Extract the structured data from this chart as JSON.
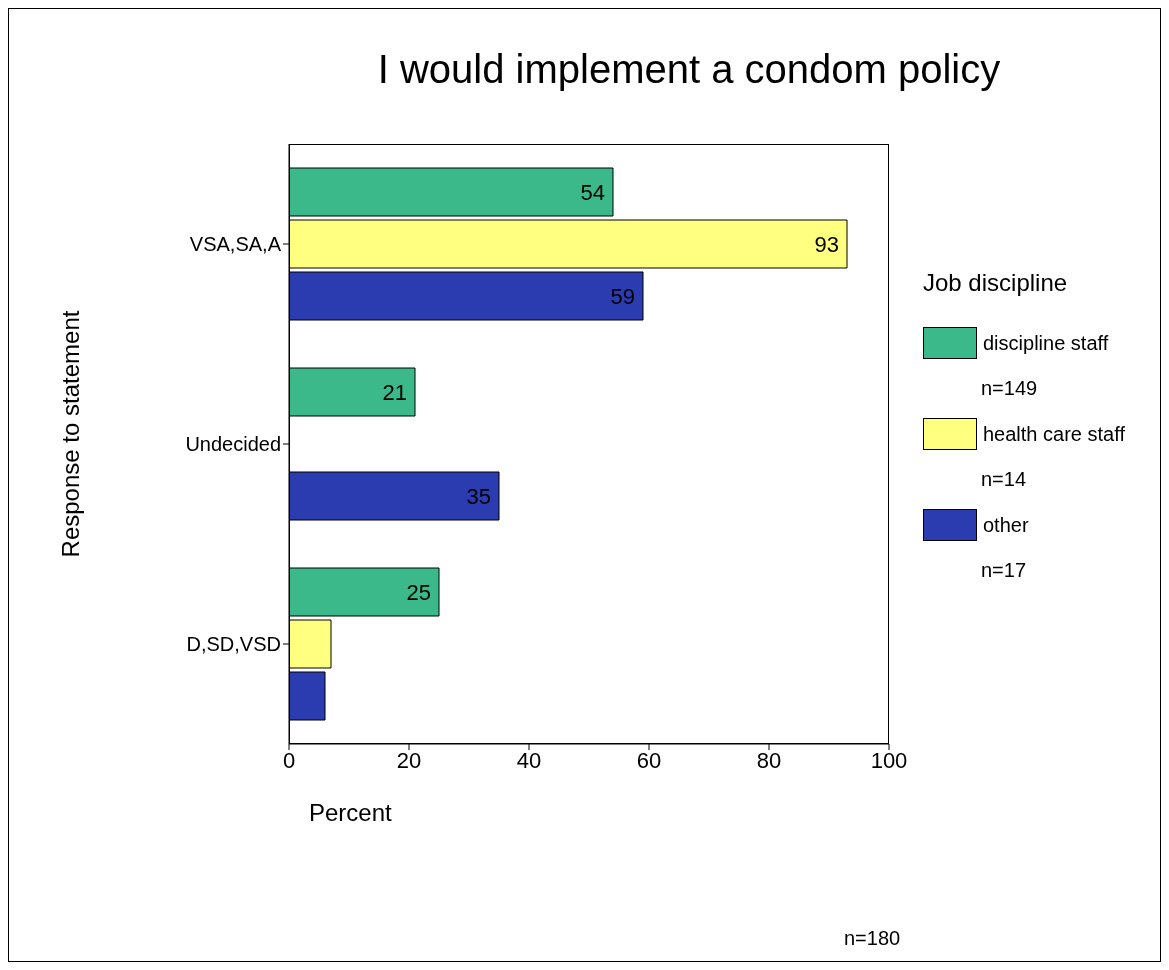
{
  "chart_data": {
    "type": "bar",
    "orientation": "horizontal",
    "title": "I would implement a condom policy",
    "xlabel": "Percent",
    "ylabel": "Response to statement",
    "legend_title": "Job discipline",
    "legend": "right",
    "categories": [
      "VSA,SA,A",
      "Undecided",
      "D,SD,VSD"
    ],
    "series": [
      {
        "name": "discipline staff",
        "color": "#3cb98a",
        "values": [
          54,
          21,
          25
        ],
        "value_labels": [
          "54",
          "21",
          "25"
        ]
      },
      {
        "name": "health care staff",
        "color": "#ffff80",
        "values": [
          93,
          0,
          7
        ],
        "value_labels": [
          "93",
          null,
          null
        ]
      },
      {
        "name": "other",
        "color": "#2a3cb0",
        "values": [
          59,
          35,
          6
        ],
        "value_labels": [
          "59",
          "35",
          null
        ]
      }
    ],
    "xlim": [
      0,
      100
    ],
    "xticks": [
      0,
      20,
      40,
      60,
      80,
      100
    ],
    "grid": false,
    "annotations": [
      "n=149",
      "n=14",
      "n=17",
      "n=180"
    ]
  }
}
